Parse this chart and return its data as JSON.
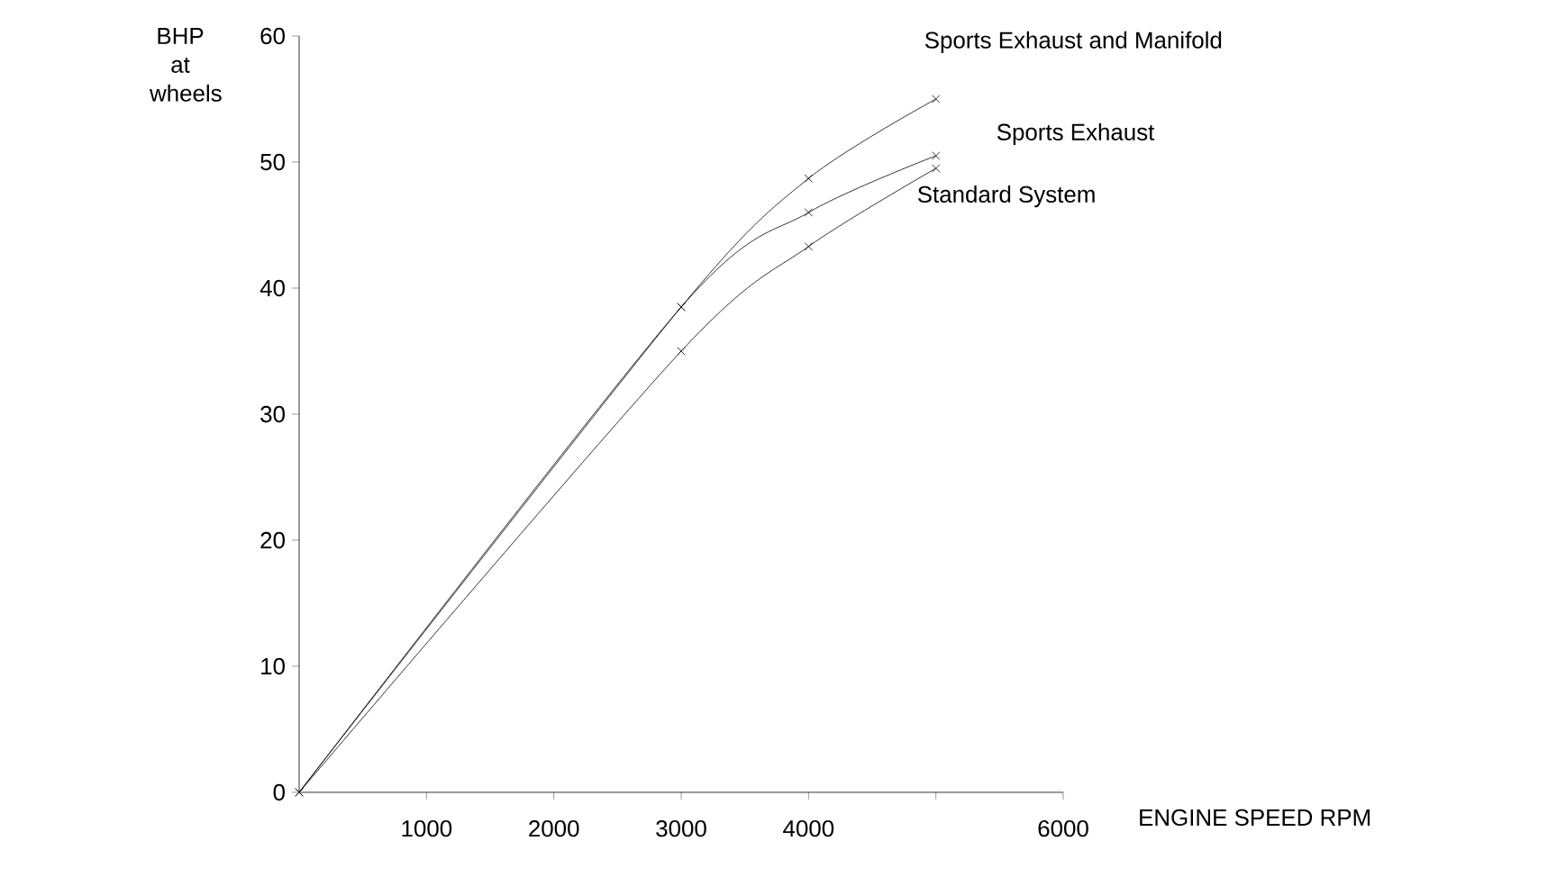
{
  "chart_data": {
    "type": "line",
    "xlabel": "ENGINE SPEED RPM",
    "ylabel": "BHP at wheels",
    "x": [
      0,
      3000,
      4000,
      5000
    ],
    "series": [
      {
        "name": "Sports Exhaust and Manifold",
        "color": "#000000",
        "values": [
          0,
          38.5,
          48.7,
          55
        ]
      },
      {
        "name": "Sports Exhaust",
        "color": "#000000",
        "values": [
          0,
          38.5,
          46,
          50.5
        ]
      },
      {
        "name": "Standard System",
        "color": "#000000",
        "values": [
          0,
          35,
          43.3,
          49.5
        ]
      }
    ],
    "xlim": [
      0,
      6000
    ],
    "ylim": [
      0,
      60
    ],
    "xticks": [
      1000,
      2000,
      3000,
      4000,
      {
        "value": 5000,
        "label": null
      },
      6000
    ],
    "yticks": [
      0,
      10,
      20,
      30,
      40,
      50,
      60
    ],
    "marker": "cross",
    "line_style": "solid",
    "grid": false
  }
}
